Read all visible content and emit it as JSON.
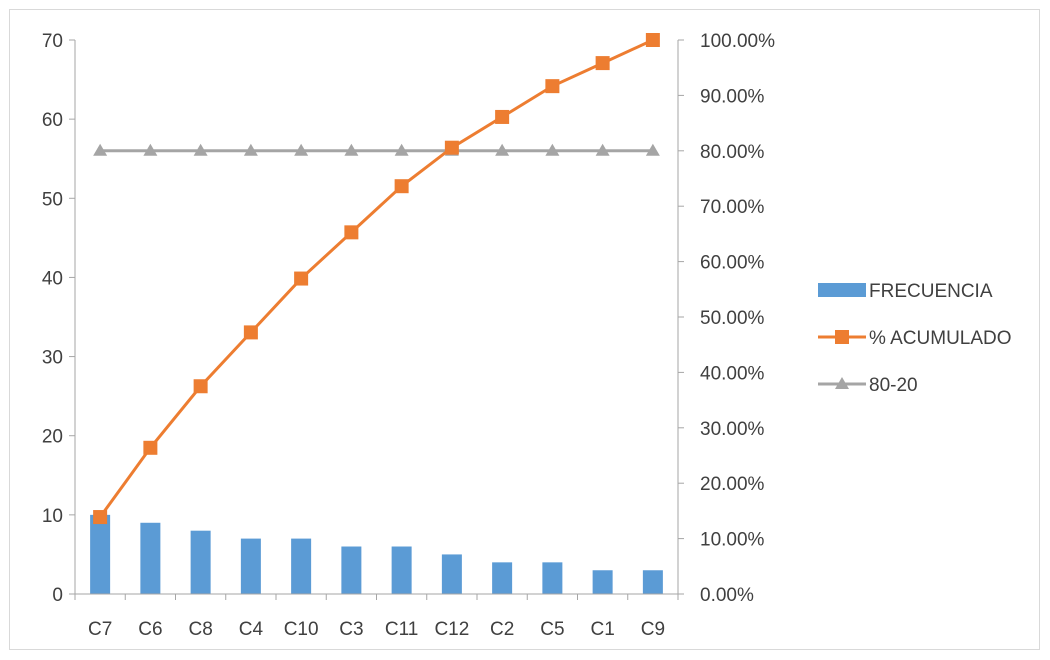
{
  "chart_data": {
    "type": "bar",
    "title": "",
    "xlabel": "",
    "ylabel": "",
    "categories": [
      "C7",
      "C6",
      "C8",
      "C4",
      "C10",
      "C3",
      "C11",
      "C12",
      "C2",
      "C5",
      "C1",
      "C9"
    ],
    "series": [
      {
        "name": "FRECUENCIA",
        "type": "bar",
        "axis": "left",
        "color": "#5B9BD5",
        "values": [
          10,
          9,
          8,
          7,
          7,
          6,
          6,
          5,
          4,
          4,
          3,
          3
        ]
      },
      {
        "name": "% ACUMULADO",
        "type": "line",
        "axis": "right",
        "marker": "square",
        "color": "#ED7D31",
        "values": [
          0.1389,
          0.2639,
          0.375,
          0.4722,
          0.5694,
          0.6528,
          0.7361,
          0.8056,
          0.8611,
          0.9167,
          0.9583,
          1.0
        ]
      },
      {
        "name": "80-20",
        "type": "line",
        "axis": "right",
        "marker": "triangle",
        "color": "#A5A5A5",
        "values": [
          0.8,
          0.8,
          0.8,
          0.8,
          0.8,
          0.8,
          0.8,
          0.8,
          0.8,
          0.8,
          0.8,
          0.8
        ]
      }
    ],
    "y_left": {
      "ylim": [
        0,
        70
      ],
      "ticks": [
        "0",
        "10",
        "20",
        "30",
        "40",
        "50",
        "60",
        "70"
      ]
    },
    "y_right": {
      "ylim": [
        0,
        1.0
      ],
      "ticks": [
        "0.00%",
        "10.00%",
        "20.00%",
        "30.00%",
        "40.00%",
        "50.00%",
        "60.00%",
        "70.00%",
        "80.00%",
        "90.00%",
        "100.00%"
      ]
    },
    "grid": false,
    "legend": "right"
  }
}
